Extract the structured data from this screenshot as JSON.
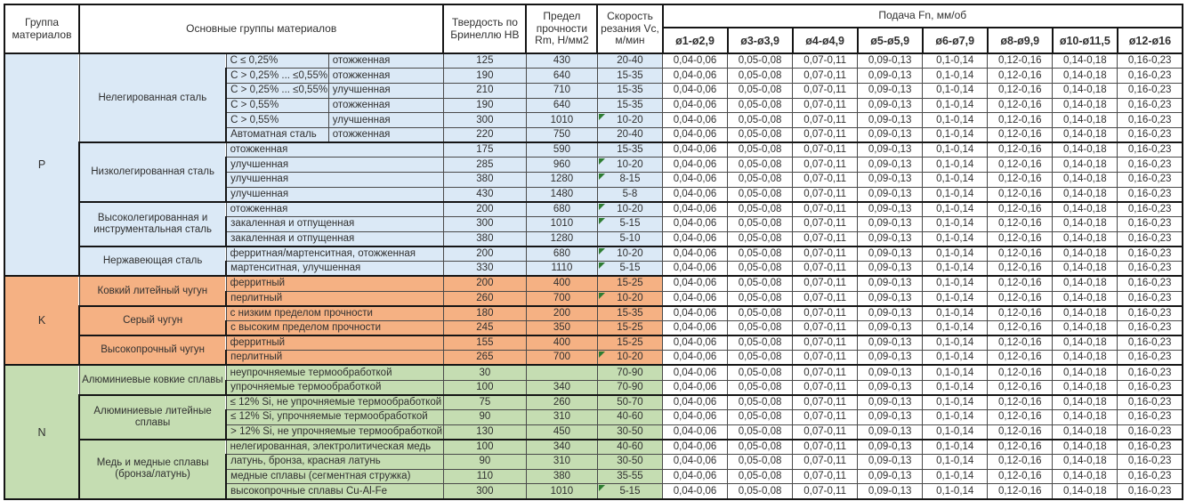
{
  "title": "Таблица режимов резания (сверление): группы материалов, твердость, прочность, скорость резания и подача",
  "colors": {
    "group_p": "#dbe9f6",
    "group_k": "#f5b183",
    "group_n": "#c5ddb2",
    "flag_triangle": "#2e7d32",
    "grid": "#4a4a4a"
  },
  "header": {
    "col_group": "Группа материалов",
    "col_main": "Основные группы материалов",
    "col_hardness": "Твердость по Бринеллю HB",
    "col_strength": "Предел прочности Rm, Н/мм2",
    "col_speed": "Скорость резания Vc, м/мин",
    "col_feed": "Подача Fn, мм/об",
    "feed_cols": [
      "ø1-ø2,9",
      "ø3-ø3,9",
      "ø4-ø4,9",
      "ø5-ø5,9",
      "ø6-ø7,9",
      "ø8-ø9,9",
      "ø10-ø11,5",
      "ø12-ø16"
    ]
  },
  "feed_values": [
    "0,04-0,06",
    "0,05-0,08",
    "0,07-0,11",
    "0,09-0,13",
    "0,1-0,14",
    "0,12-0,16",
    "0,14-0,18",
    "0,16-0,23"
  ],
  "groups": [
    {
      "code": "P",
      "colorKey": "p",
      "subgroups": [
        {
          "name": "Нелегированная сталь",
          "rows": [
            {
              "spec": "C ≤ 0,25%",
              "state": "отожженная",
              "hb": "125",
              "rm": "430",
              "vc": "20-40",
              "flag": false
            },
            {
              "spec": "C > 0,25% ... ≤0,55%",
              "state": "отожженная",
              "hb": "190",
              "rm": "640",
              "vc": "15-35",
              "flag": false
            },
            {
              "spec": "C > 0,25% ... ≤0,55%",
              "state": "улучшенная",
              "hb": "210",
              "rm": "710",
              "vc": "15-35",
              "flag": false
            },
            {
              "spec": "C > 0,55%",
              "state": "отожженная",
              "hb": "190",
              "rm": "640",
              "vc": "15-35",
              "flag": false
            },
            {
              "spec": "C > 0,55%",
              "state": "улучшенная",
              "hb": "300",
              "rm": "1010",
              "vc": "10-20",
              "flag": true
            },
            {
              "spec": "Автоматная сталь",
              "state": "отожженная",
              "hb": "220",
              "rm": "750",
              "vc": "20-40",
              "flag": false
            }
          ]
        },
        {
          "name": "Низколегированная сталь",
          "rows": [
            {
              "desc": "отожженная",
              "hb": "175",
              "rm": "590",
              "vc": "15-35",
              "flag": false
            },
            {
              "desc": "улучшенная",
              "hb": "285",
              "rm": "960",
              "vc": "10-20",
              "flag": true
            },
            {
              "desc": "улучшенная",
              "hb": "380",
              "rm": "1280",
              "vc": "8-15",
              "flag": true
            },
            {
              "desc": "улучшенная",
              "hb": "430",
              "rm": "1480",
              "vc": "5-8",
              "flag": false
            }
          ]
        },
        {
          "name": "Высоколегированная и инструментальная сталь",
          "rows": [
            {
              "desc": "отожженная",
              "hb": "200",
              "rm": "680",
              "vc": "10-20",
              "flag": true
            },
            {
              "desc": "закаленная и отпущенная",
              "hb": "300",
              "rm": "1010",
              "vc": "5-15",
              "flag": true
            },
            {
              "desc": "закаленная и отпущенная",
              "hb": "380",
              "rm": "1280",
              "vc": "5-10",
              "flag": false
            }
          ]
        },
        {
          "name": "Нержавеющая сталь",
          "rows": [
            {
              "desc": "ферритная/мартенситная, отожженная",
              "hb": "200",
              "rm": "680",
              "vc": "10-20",
              "flag": true
            },
            {
              "desc": "мартенситная, улучшенная",
              "hb": "330",
              "rm": "1110",
              "vc": "5-15",
              "flag": true
            }
          ]
        }
      ]
    },
    {
      "code": "K",
      "colorKey": "k",
      "subgroups": [
        {
          "name": "Ковкий литейный чугун",
          "rows": [
            {
              "desc": "ферритный",
              "hb": "200",
              "rm": "400",
              "vc": "15-25",
              "flag": false
            },
            {
              "desc": "перлитный",
              "hb": "260",
              "rm": "700",
              "vc": "10-20",
              "flag": true
            }
          ]
        },
        {
          "name": "Серый чугун",
          "rows": [
            {
              "desc": "с низким пределом прочности",
              "hb": "180",
              "rm": "200",
              "vc": "15-35",
              "flag": false
            },
            {
              "desc": "с высоким пределом прочности",
              "hb": "245",
              "rm": "350",
              "vc": "15-25",
              "flag": false
            }
          ]
        },
        {
          "name": "Высокопрочный чугун",
          "rows": [
            {
              "desc": "ферритный",
              "hb": "155",
              "rm": "400",
              "vc": "15-25",
              "flag": false
            },
            {
              "desc": "перлитный",
              "hb": "265",
              "rm": "700",
              "vc": "10-20",
              "flag": true
            }
          ]
        }
      ]
    },
    {
      "code": "N",
      "colorKey": "n",
      "subgroups": [
        {
          "name": "Алюминиевые ковкие сплавы",
          "rows": [
            {
              "desc": "неупрочняемые термообработкой",
              "hb": "30",
              "rm": "",
              "vc": "70-90",
              "flag": false
            },
            {
              "desc": "упрочняемые термообработкой",
              "hb": "100",
              "rm": "340",
              "vc": "70-90",
              "flag": false
            }
          ]
        },
        {
          "name": "Алюминиевые литейные сплавы",
          "rows": [
            {
              "desc": "≤ 12% Si, не упрочняемые термообработкой",
              "hb": "75",
              "rm": "260",
              "vc": "50-70",
              "flag": false
            },
            {
              "desc": "≤ 12% Si, упрочняемые термообработкой",
              "hb": "90",
              "rm": "310",
              "vc": "40-60",
              "flag": false
            },
            {
              "desc": "> 12% Si, не упрочняемые термообработкой",
              "hb": "130",
              "rm": "450",
              "vc": "30-50",
              "flag": false
            }
          ]
        },
        {
          "name": "Медь и медные сплавы (бронза/латунь)",
          "rows": [
            {
              "desc": "нелегированная, электролитическая медь",
              "hb": "100",
              "rm": "340",
              "vc": "40-60",
              "flag": false
            },
            {
              "desc": "латунь, бронза, красная латунь",
              "hb": "90",
              "rm": "310",
              "vc": "30-50",
              "flag": false
            },
            {
              "desc": "медные сплавы (сегментная стружка)",
              "hb": "110",
              "rm": "380",
              "vc": "35-55",
              "flag": false
            },
            {
              "desc": "высокопрочные сплавы Cu-Al-Fe",
              "hb": "300",
              "rm": "1010",
              "vc": "5-15",
              "flag": true
            }
          ]
        }
      ]
    }
  ]
}
